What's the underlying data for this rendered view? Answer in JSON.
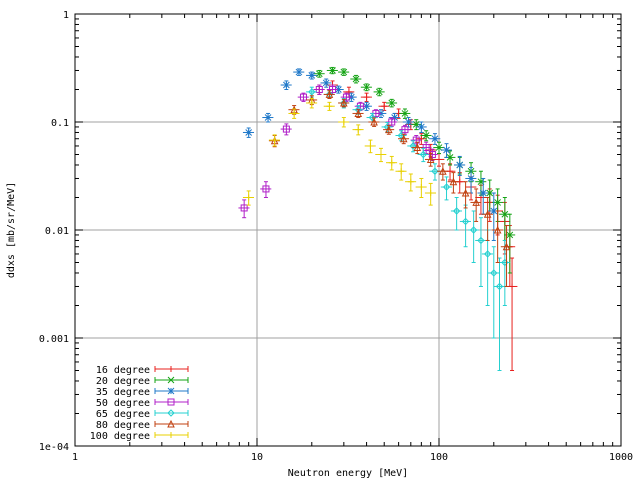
{
  "chart_data": {
    "type": "scatter",
    "title": "",
    "xlabel": "Neutron energy [MeV]",
    "ylabel": "ddxs [mb/sr/MeV]",
    "xscale": "log",
    "yscale": "log",
    "xlim": [
      1,
      1000
    ],
    "ylim": [
      0.0001,
      1
    ],
    "x_ticks": [
      1,
      10,
      100,
      1000
    ],
    "x_tick_labels": [
      "1",
      "10",
      "100",
      "1000"
    ],
    "y_ticks": [
      0.0001,
      0.001,
      0.01,
      0.1,
      1
    ],
    "y_tick_labels": [
      "1e-04",
      "0.001",
      "0.01",
      "0.1",
      "1"
    ],
    "grid": true,
    "legend_position": "bottom-left",
    "error_bars": true,
    "series": [
      {
        "name": "16 degree",
        "color": "#e8201e",
        "marker": "plus",
        "points": [
          [
            22,
            0.2,
            0.02
          ],
          [
            26,
            0.22,
            0.02
          ],
          [
            32,
            0.19,
            0.02
          ],
          [
            40,
            0.17,
            0.015
          ],
          [
            50,
            0.14,
            0.012
          ],
          [
            60,
            0.12,
            0.012
          ],
          [
            70,
            0.095,
            0.01
          ],
          [
            80,
            0.07,
            0.008
          ],
          [
            90,
            0.055,
            0.007
          ],
          [
            100,
            0.045,
            0.006
          ],
          [
            115,
            0.035,
            0.006
          ],
          [
            130,
            0.028,
            0.006
          ],
          [
            150,
            0.025,
            0.006
          ],
          [
            170,
            0.02,
            0.006
          ],
          [
            190,
            0.018,
            0.006
          ],
          [
            210,
            0.015,
            0.006
          ],
          [
            230,
            0.012,
            0.006
          ],
          [
            245,
            0.007,
            0.004
          ],
          [
            252,
            0.003,
            0.0025
          ]
        ]
      },
      {
        "name": "20 degree",
        "color": "#13a313",
        "marker": "cross",
        "points": [
          [
            22,
            0.28,
            0.02
          ],
          [
            26,
            0.3,
            0.02
          ],
          [
            30,
            0.29,
            0.02
          ],
          [
            35,
            0.25,
            0.02
          ],
          [
            40,
            0.21,
            0.015
          ],
          [
            47,
            0.19,
            0.015
          ],
          [
            55,
            0.15,
            0.012
          ],
          [
            65,
            0.12,
            0.012
          ],
          [
            75,
            0.095,
            0.01
          ],
          [
            85,
            0.075,
            0.008
          ],
          [
            100,
            0.058,
            0.007
          ],
          [
            115,
            0.047,
            0.007
          ],
          [
            130,
            0.04,
            0.007
          ],
          [
            150,
            0.035,
            0.007
          ],
          [
            170,
            0.028,
            0.007
          ],
          [
            190,
            0.022,
            0.007
          ],
          [
            210,
            0.018,
            0.006
          ],
          [
            230,
            0.014,
            0.006
          ],
          [
            245,
            0.009,
            0.005
          ]
        ]
      },
      {
        "name": "35 degree",
        "color": "#1f78c9",
        "marker": "asterisk",
        "points": [
          [
            9,
            0.08,
            0.008
          ],
          [
            11.5,
            0.11,
            0.01
          ],
          [
            14.5,
            0.22,
            0.02
          ],
          [
            17,
            0.29,
            0.02
          ],
          [
            20,
            0.27,
            0.02
          ],
          [
            24,
            0.23,
            0.02
          ],
          [
            28,
            0.2,
            0.015
          ],
          [
            33,
            0.17,
            0.015
          ],
          [
            40,
            0.14,
            0.012
          ],
          [
            48,
            0.12,
            0.01
          ],
          [
            57,
            0.11,
            0.01
          ],
          [
            68,
            0.1,
            0.01
          ],
          [
            80,
            0.09,
            0.01
          ],
          [
            95,
            0.07,
            0.008
          ],
          [
            110,
            0.055,
            0.008
          ],
          [
            130,
            0.04,
            0.008
          ],
          [
            150,
            0.03,
            0.008
          ],
          [
            175,
            0.022,
            0.008
          ],
          [
            200,
            0.015,
            0.007
          ]
        ]
      },
      {
        "name": "50 degree",
        "color": "#b020c8",
        "marker": "square",
        "points": [
          [
            8.5,
            0.016,
            0.003
          ],
          [
            11.2,
            0.024,
            0.004
          ],
          [
            14.5,
            0.086,
            0.01
          ],
          [
            18,
            0.17,
            0.015
          ],
          [
            22,
            0.2,
            0.02
          ],
          [
            26,
            0.2,
            0.02
          ],
          [
            31,
            0.17,
            0.015
          ],
          [
            37,
            0.14,
            0.012
          ],
          [
            45,
            0.12,
            0.01
          ],
          [
            55,
            0.1,
            0.009
          ],
          [
            65,
            0.085,
            0.008
          ],
          [
            75,
            0.068,
            0.007
          ],
          [
            85,
            0.058,
            0.007
          ],
          [
            92,
            0.05,
            0.006
          ]
        ]
      },
      {
        "name": "65 degree",
        "color": "#25d0d0",
        "marker": "diamond",
        "points": [
          [
            20,
            0.19,
            0.02
          ],
          [
            25,
            0.18,
            0.015
          ],
          [
            30,
            0.15,
            0.015
          ],
          [
            36,
            0.13,
            0.012
          ],
          [
            43,
            0.11,
            0.01
          ],
          [
            52,
            0.09,
            0.009
          ],
          [
            62,
            0.075,
            0.008
          ],
          [
            72,
            0.06,
            0.007
          ],
          [
            82,
            0.05,
            0.007
          ],
          [
            95,
            0.035,
            0.006
          ],
          [
            110,
            0.025,
            0.006
          ],
          [
            125,
            0.015,
            0.005
          ],
          [
            140,
            0.012,
            0.005
          ],
          [
            155,
            0.01,
            0.005
          ],
          [
            170,
            0.008,
            0.005
          ],
          [
            185,
            0.006,
            0.004
          ],
          [
            200,
            0.004,
            0.003
          ],
          [
            215,
            0.003,
            0.0025
          ],
          [
            230,
            0.005,
            0.003
          ]
        ]
      },
      {
        "name": "80 degree",
        "color": "#c04010",
        "marker": "triangle",
        "points": [
          [
            12.5,
            0.067,
            0.008
          ],
          [
            16,
            0.13,
            0.012
          ],
          [
            20,
            0.16,
            0.015
          ],
          [
            25,
            0.18,
            0.015
          ],
          [
            30,
            0.15,
            0.012
          ],
          [
            36,
            0.12,
            0.01
          ],
          [
            44,
            0.1,
            0.009
          ],
          [
            53,
            0.085,
            0.008
          ],
          [
            64,
            0.07,
            0.007
          ],
          [
            76,
            0.058,
            0.007
          ],
          [
            90,
            0.045,
            0.006
          ],
          [
            105,
            0.035,
            0.006
          ],
          [
            120,
            0.028,
            0.006
          ],
          [
            140,
            0.022,
            0.006
          ],
          [
            160,
            0.018,
            0.006
          ],
          [
            185,
            0.014,
            0.006
          ],
          [
            210,
            0.01,
            0.005
          ],
          [
            235,
            0.007,
            0.004
          ]
        ]
      },
      {
        "name": "100 degree",
        "color": "#e8d000",
        "marker": "plus",
        "points": [
          [
            9,
            0.02,
            0.003
          ],
          [
            12.5,
            0.068,
            0.008
          ],
          [
            16,
            0.12,
            0.012
          ],
          [
            20,
            0.15,
            0.015
          ],
          [
            25,
            0.14,
            0.012
          ],
          [
            30,
            0.1,
            0.01
          ],
          [
            36,
            0.085,
            0.009
          ],
          [
            42,
            0.06,
            0.008
          ],
          [
            48,
            0.05,
            0.007
          ],
          [
            55,
            0.042,
            0.006
          ],
          [
            62,
            0.035,
            0.006
          ],
          [
            70,
            0.028,
            0.005
          ],
          [
            80,
            0.025,
            0.005
          ],
          [
            90,
            0.022,
            0.005
          ]
        ]
      }
    ]
  }
}
